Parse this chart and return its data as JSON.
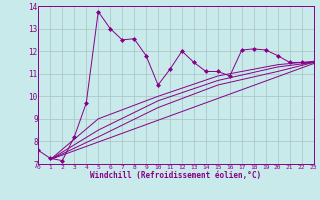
{
  "title": "",
  "xlabel": "Windchill (Refroidissement éolien,°C)",
  "ylabel": "",
  "bg_color": "#c8eaea",
  "grid_color": "#b0c8c8",
  "line_color": "#880088",
  "xlim": [
    0,
    23
  ],
  "ylim": [
    7,
    14
  ],
  "xtick_labels": [
    "0",
    "1",
    "2",
    "3",
    "4",
    "5",
    "6",
    "7",
    "8",
    "9",
    "10",
    "11",
    "12",
    "13",
    "14",
    "15",
    "16",
    "17",
    "18",
    "19",
    "20",
    "21",
    "22",
    "23"
  ],
  "ytick_labels": [
    "7",
    "8",
    "9",
    "10",
    "11",
    "12",
    "13",
    "14"
  ],
  "main_line": [
    [
      0,
      7.6
    ],
    [
      1,
      7.25
    ],
    [
      2,
      7.15
    ],
    [
      3,
      8.2
    ],
    [
      4,
      9.7
    ],
    [
      5,
      13.75
    ],
    [
      6,
      13.0
    ],
    [
      7,
      12.5
    ],
    [
      8,
      12.55
    ],
    [
      9,
      11.8
    ],
    [
      10,
      10.5
    ],
    [
      11,
      11.2
    ],
    [
      12,
      12.0
    ],
    [
      13,
      11.5
    ],
    [
      14,
      11.1
    ],
    [
      15,
      11.1
    ],
    [
      16,
      10.9
    ],
    [
      17,
      12.05
    ],
    [
      18,
      12.1
    ],
    [
      19,
      12.05
    ],
    [
      20,
      11.8
    ],
    [
      21,
      11.5
    ],
    [
      22,
      11.5
    ],
    [
      23,
      11.5
    ]
  ],
  "smooth_line1": [
    [
      1,
      7.2
    ],
    [
      23,
      11.45
    ]
  ],
  "smooth_line2": [
    [
      1,
      7.2
    ],
    [
      5,
      8.2
    ],
    [
      10,
      9.5
    ],
    [
      15,
      10.5
    ],
    [
      20,
      11.1
    ],
    [
      23,
      11.5
    ]
  ],
  "smooth_line3": [
    [
      1,
      7.2
    ],
    [
      5,
      8.5
    ],
    [
      10,
      9.8
    ],
    [
      15,
      10.7
    ],
    [
      20,
      11.3
    ],
    [
      23,
      11.5
    ]
  ],
  "smooth_line4": [
    [
      1,
      7.2
    ],
    [
      5,
      9.0
    ],
    [
      10,
      10.0
    ],
    [
      15,
      10.9
    ],
    [
      20,
      11.4
    ],
    [
      23,
      11.55
    ]
  ]
}
